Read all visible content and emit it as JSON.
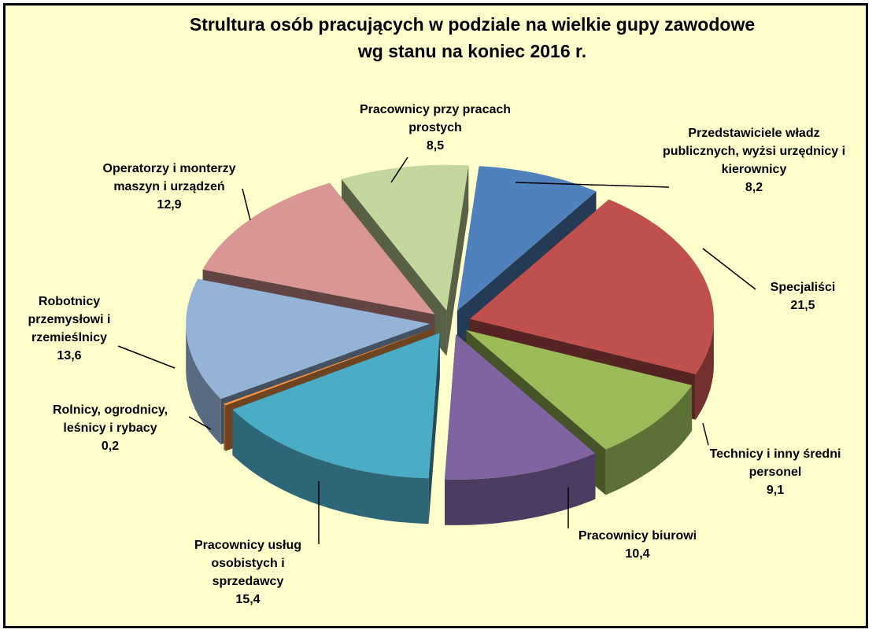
{
  "chart_data": {
    "type": "pie",
    "title": "Strultura osób pracujących w podziale na wielkie gupy zawodowe",
    "subtitle": "wg stanu na koniec 2016 r.",
    "categories": [
      "Przedstawiciele władz publicznych, wyżsi urzędnicy i kierownicy",
      "Specjaliści",
      "Technicy i inny średni personel",
      "Pracownicy biurowi",
      "Pracownicy usług osobistych i sprzedawcy",
      "Rolnicy, ogrodnicy, leśnicy i rybacy",
      "Robotnicy przemysłowi i rzemieślnicy",
      "Operatorzy i monterzy maszyn i urządzeń",
      "Pracownicy przy pracach prostych"
    ],
    "values": [
      8.2,
      21.5,
      9.1,
      10.4,
      15.4,
      0.2,
      13.6,
      12.9,
      8.5
    ],
    "value_labels": [
      "8,2",
      "21,5",
      "9,1",
      "10,4",
      "15,4",
      "0,2",
      "13,6",
      "12,9",
      "8,5"
    ],
    "colors": [
      "#4f81bd",
      "#c0504d",
      "#9bbb59",
      "#8064a2",
      "#4bacc6",
      "#f79646",
      "#95b3d7",
      "#d99694",
      "#c3d69b"
    ]
  }
}
